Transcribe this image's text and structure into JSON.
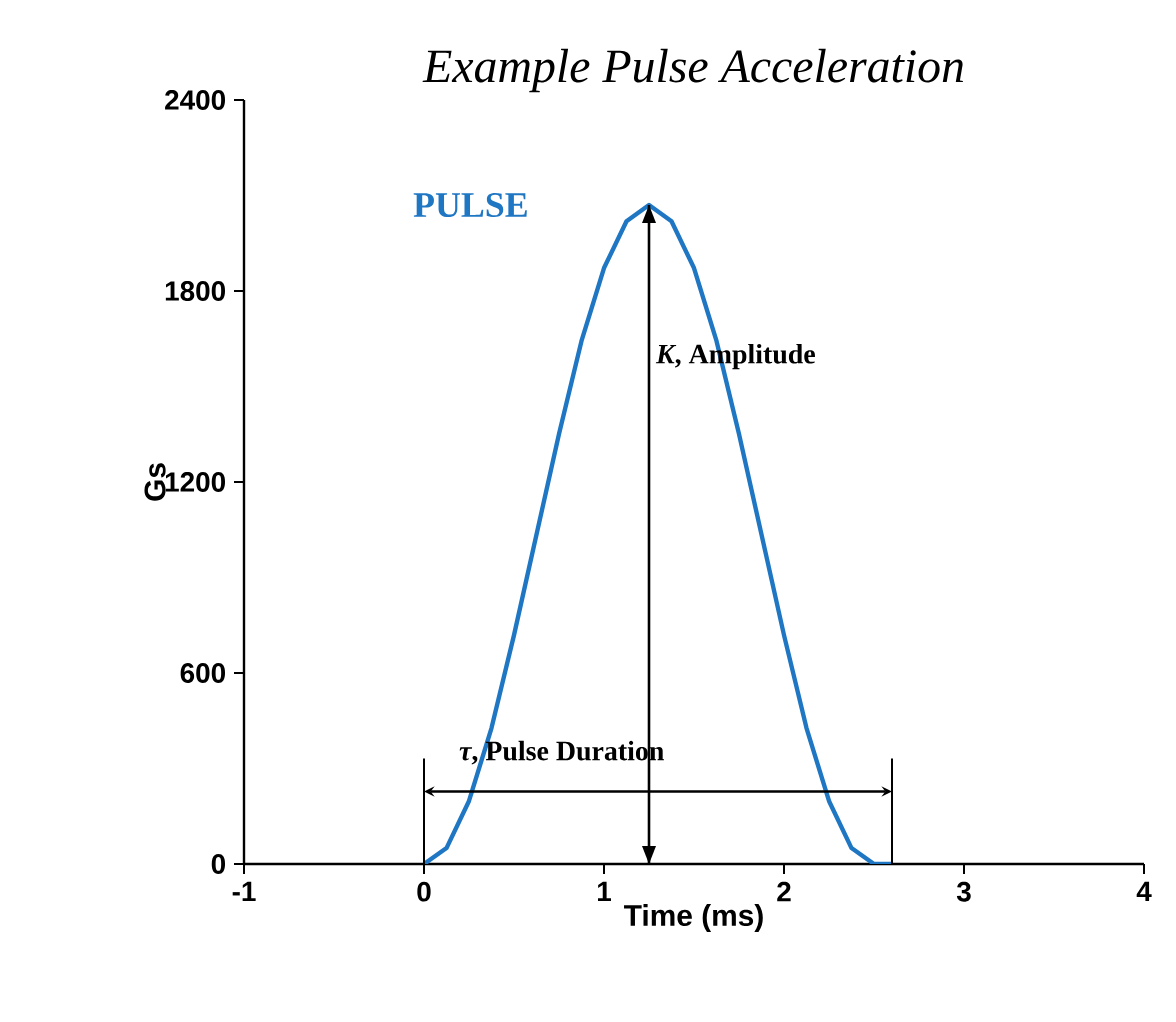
{
  "chart_data": {
    "type": "line",
    "title": "Example Pulse Acceleration",
    "xlabel": "Time (ms)",
    "ylabel": "Gs",
    "series": [
      {
        "name": "PULSE",
        "color": "#1f77c4",
        "x": [
          0,
          0.125,
          0.25,
          0.375,
          0.5,
          0.625,
          0.75,
          0.875,
          1,
          1.125,
          1.25,
          1.375,
          1.5,
          1.625,
          1.75,
          1.875,
          2,
          2.125,
          2.25,
          2.375,
          2.5,
          2.6
        ],
        "values": [
          0,
          50,
          198,
          427,
          719,
          1035,
          1351,
          1643,
          1872,
          2019,
          2070,
          2019,
          1872,
          1643,
          1351,
          1035,
          719,
          427,
          198,
          50,
          0,
          0
        ]
      },
      {
        "type": "line",
        "color": "#000000",
        "x": [
          1.25,
          1.25
        ],
        "values": [
          0,
          2070
        ]
      }
    ],
    "xlim": [
      -1,
      4
    ],
    "xticks": [
      -1,
      0,
      1,
      2,
      3,
      4
    ],
    "ylim": [
      0,
      2400
    ],
    "yticks": [
      0,
      600,
      1200,
      1800,
      2400
    ],
    "annotations": [
      "*K*, Amplitude",
      {
        "text": "*τ*, Pulse Duration",
        "x": 0,
        "y": 0
      }
    ],
    "legend": false,
    "marker": "none",
    "line_style": "solid",
    "grid": false
  }
}
